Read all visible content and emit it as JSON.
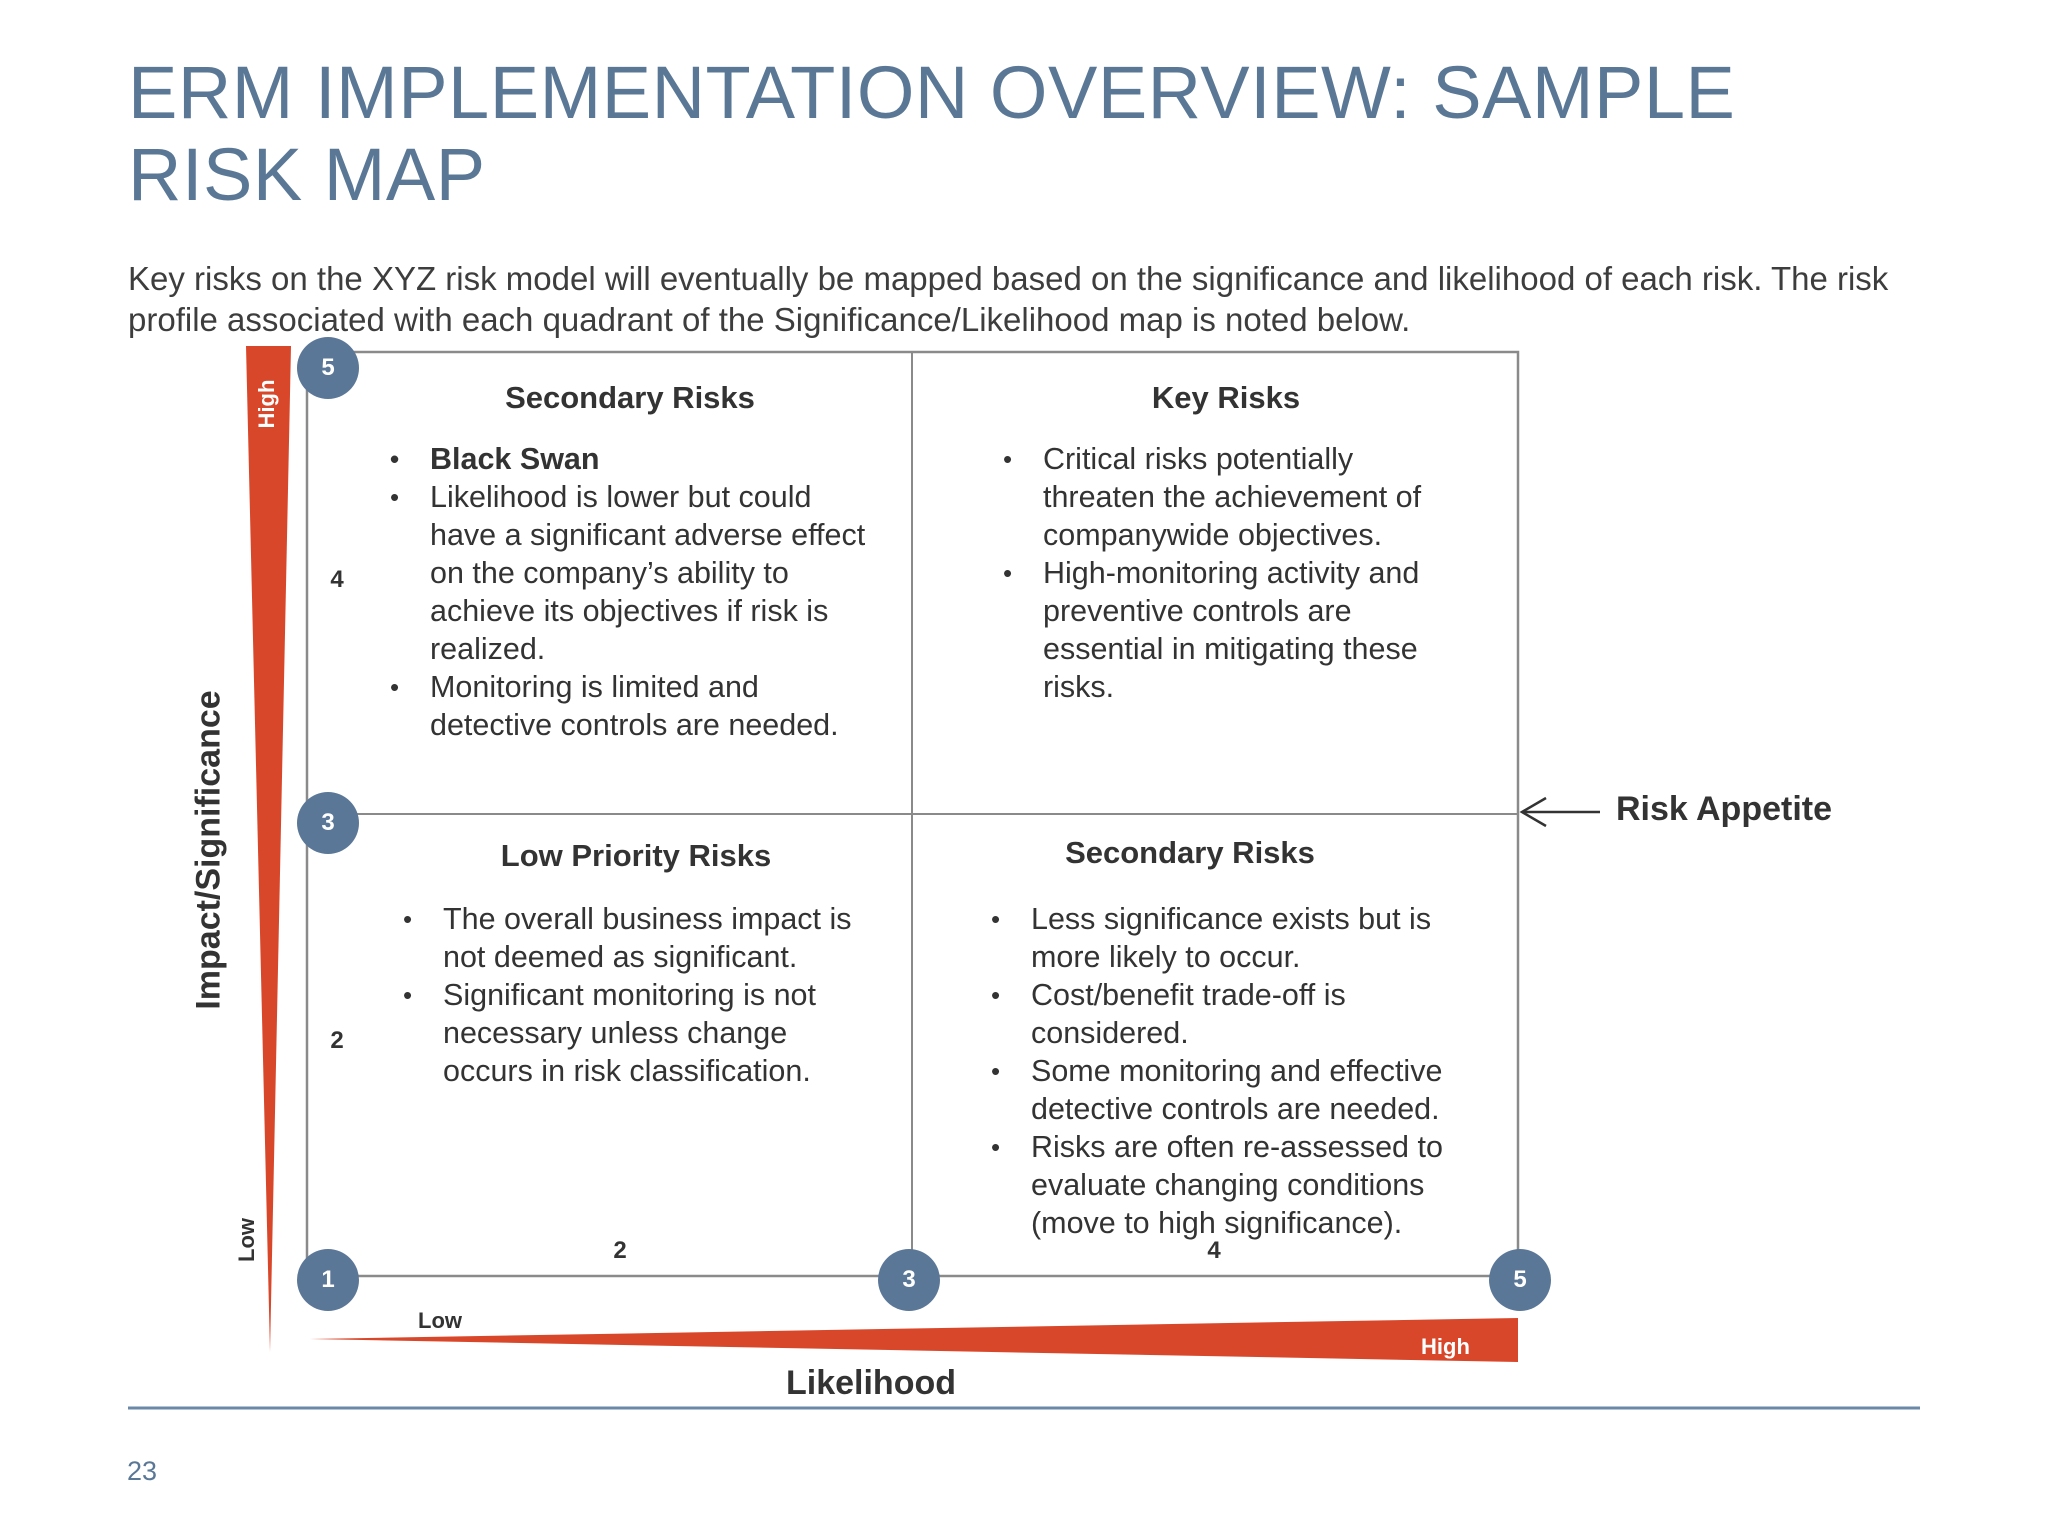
{
  "title": "ERM IMPLEMENTATION OVERVIEW: SAMPLE RISK MAP",
  "intro": "Key risks on the XYZ risk model will eventually be mapped based on the significance and likelihood of each risk. The risk profile associated with each quadrant of the Significance/Likelihood map is noted below.",
  "colors": {
    "title": "#5a7896",
    "wedge": "#d9472b",
    "circle": "#5b7797",
    "frame": "#8a8a8a",
    "rule": "#6b88a8"
  },
  "quadrants": {
    "top_left": {
      "title": "Secondary Risks",
      "bullets": [
        "Black Swan",
        "Likelihood is lower but could have a significant adverse effect on the company’s ability to achieve its objectives if risk is realized.",
        "Monitoring is limited and detective controls are needed."
      ]
    },
    "top_right": {
      "title": "Key Risks",
      "bullets": [
        "Critical risks potentially threaten the achievement of companywide objectives.",
        "High-monitoring activity and preventive controls are essential in mitigating these risks."
      ]
    },
    "bottom_left": {
      "title": "Low Priority Risks",
      "bullets": [
        "The overall business impact is not deemed as significant.",
        "Significant monitoring is not necessary unless change occurs in risk classification."
      ]
    },
    "bottom_right": {
      "title": "Secondary Risks",
      "bullets": [
        "Less significance exists but is more likely to occur.",
        "Cost/benefit trade-off is considered.",
        "Some monitoring and effective detective controls are needed.",
        "Risks are often re-assessed to evaluate changing conditions (move to high significance)."
      ]
    }
  },
  "y_axis": {
    "title": "Impact/Significance",
    "high": "High",
    "low": "Low",
    "ticks": [
      "4",
      "2"
    ],
    "circles": [
      "5",
      "3",
      "1"
    ]
  },
  "x_axis": {
    "title": "Likelihood",
    "high": "High",
    "low": "Low",
    "ticks": [
      "2",
      "4"
    ],
    "circles": [
      "3",
      "5"
    ]
  },
  "risk_appetite": "Risk Appetite",
  "page_number": "23"
}
